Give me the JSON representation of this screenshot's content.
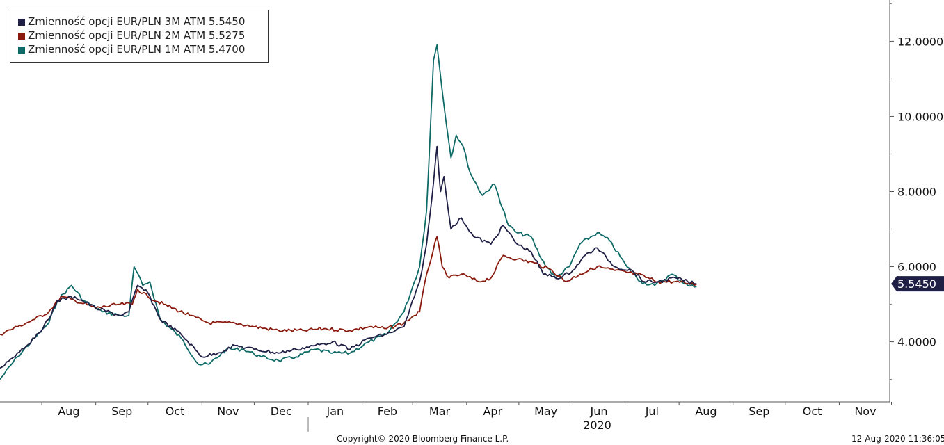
{
  "chart_data": {
    "type": "line",
    "x_range": [
      "2019-07-08",
      "2020-11-30"
    ],
    "ylim": [
      2.4,
      13.1
    ],
    "y_ticks": [
      "4.0000",
      "6.0000",
      "8.0000",
      "10.0000",
      "12.0000"
    ],
    "y_tick_values": [
      4,
      6,
      8,
      10,
      12
    ],
    "month_labels": [
      "Aug",
      "Sep",
      "Oct",
      "Nov",
      "Dec",
      "Jan",
      "Feb",
      "Mar",
      "Apr",
      "May",
      "Jun",
      "Jul",
      "Aug",
      "Sep",
      "Oct",
      "Nov"
    ],
    "year_label": "2020",
    "last_value_tag": "5.5450",
    "legend_position": "top-left",
    "series": [
      {
        "name": "Zmienność opcji EUR/PLN 3M ATM 5.5450",
        "color": "#1f1f45",
        "points": [
          [
            "2019-07-08",
            3.3
          ],
          [
            "2019-07-18",
            3.7
          ],
          [
            "2019-07-28",
            4.1
          ],
          [
            "2019-08-05",
            4.6
          ],
          [
            "2019-08-10",
            5.1
          ],
          [
            "2019-08-20",
            5.2
          ],
          [
            "2019-09-01",
            4.9
          ],
          [
            "2019-09-15",
            4.7
          ],
          [
            "2019-09-20",
            4.8
          ],
          [
            "2019-09-25",
            5.5
          ],
          [
            "2019-10-01",
            5.3
          ],
          [
            "2019-10-08",
            4.6
          ],
          [
            "2019-10-20",
            4.2
          ],
          [
            "2019-11-01",
            3.6
          ],
          [
            "2019-11-10",
            3.7
          ],
          [
            "2019-11-20",
            3.9
          ],
          [
            "2019-12-01",
            3.8
          ],
          [
            "2019-12-15",
            3.7
          ],
          [
            "2019-12-25",
            3.8
          ],
          [
            "2020-01-05",
            3.9
          ],
          [
            "2020-01-15",
            4.0
          ],
          [
            "2020-01-25",
            3.8
          ],
          [
            "2020-02-05",
            4.1
          ],
          [
            "2020-02-15",
            4.2
          ],
          [
            "2020-02-25",
            4.4
          ],
          [
            "2020-03-02",
            5.2
          ],
          [
            "2020-03-05",
            5.6
          ],
          [
            "2020-03-09",
            6.6
          ],
          [
            "2020-03-12",
            7.8
          ],
          [
            "2020-03-15",
            9.2
          ],
          [
            "2020-03-17",
            8.0
          ],
          [
            "2020-03-19",
            8.4
          ],
          [
            "2020-03-23",
            7.0
          ],
          [
            "2020-03-29",
            7.3
          ],
          [
            "2020-04-05",
            6.8
          ],
          [
            "2020-04-15",
            6.6
          ],
          [
            "2020-04-22",
            7.1
          ],
          [
            "2020-04-30",
            6.6
          ],
          [
            "2020-05-08",
            6.4
          ],
          [
            "2020-05-15",
            5.8
          ],
          [
            "2020-05-25",
            5.7
          ],
          [
            "2020-06-01",
            5.9
          ],
          [
            "2020-06-08",
            6.3
          ],
          [
            "2020-06-15",
            6.5
          ],
          [
            "2020-06-25",
            6.0
          ],
          [
            "2020-07-05",
            5.9
          ],
          [
            "2020-07-12",
            5.6
          ],
          [
            "2020-07-20",
            5.6
          ],
          [
            "2020-07-30",
            5.7
          ],
          [
            "2020-08-06",
            5.6
          ],
          [
            "2020-08-11",
            5.545
          ]
        ]
      },
      {
        "name": "Zmienność opcji EUR/PLN 2M ATM 5.5275",
        "color": "#8b1a0e",
        "points": [
          [
            "2019-07-08",
            4.2
          ],
          [
            "2019-07-18",
            4.4
          ],
          [
            "2019-07-28",
            4.6
          ],
          [
            "2019-08-05",
            4.8
          ],
          [
            "2019-08-12",
            5.2
          ],
          [
            "2019-08-20",
            5.1
          ],
          [
            "2019-09-01",
            4.9
          ],
          [
            "2019-09-15",
            5.0
          ],
          [
            "2019-09-22",
            5.0
          ],
          [
            "2019-09-25",
            5.4
          ],
          [
            "2019-10-01",
            5.2
          ],
          [
            "2019-10-10",
            5.0
          ],
          [
            "2019-10-25",
            4.7
          ],
          [
            "2019-11-05",
            4.5
          ],
          [
            "2019-11-20",
            4.5
          ],
          [
            "2019-12-01",
            4.4
          ],
          [
            "2019-12-15",
            4.3
          ],
          [
            "2019-12-30",
            4.3
          ],
          [
            "2020-01-10",
            4.35
          ],
          [
            "2020-01-25",
            4.3
          ],
          [
            "2020-02-05",
            4.4
          ],
          [
            "2020-02-15",
            4.35
          ],
          [
            "2020-02-25",
            4.5
          ],
          [
            "2020-03-02",
            4.7
          ],
          [
            "2020-03-05",
            4.8
          ],
          [
            "2020-03-09",
            5.8
          ],
          [
            "2020-03-15",
            6.8
          ],
          [
            "2020-03-18",
            6.0
          ],
          [
            "2020-03-22",
            5.7
          ],
          [
            "2020-03-29",
            5.8
          ],
          [
            "2020-04-08",
            5.6
          ],
          [
            "2020-04-15",
            5.7
          ],
          [
            "2020-04-22",
            6.3
          ],
          [
            "2020-04-30",
            6.2
          ],
          [
            "2020-05-10",
            6.1
          ],
          [
            "2020-05-20",
            5.9
          ],
          [
            "2020-05-28",
            5.6
          ],
          [
            "2020-06-05",
            5.8
          ],
          [
            "2020-06-15",
            6.0
          ],
          [
            "2020-06-25",
            5.9
          ],
          [
            "2020-07-08",
            5.8
          ],
          [
            "2020-07-20",
            5.6
          ],
          [
            "2020-07-30",
            5.6
          ],
          [
            "2020-08-06",
            5.55
          ],
          [
            "2020-08-11",
            5.5275
          ]
        ]
      },
      {
        "name": "Zmienność opcji EUR/PLN 1M ATM 5.4700",
        "color": "#0e6a66",
        "points": [
          [
            "2019-07-08",
            3.0
          ],
          [
            "2019-07-18",
            3.6
          ],
          [
            "2019-07-28",
            4.1
          ],
          [
            "2019-08-05",
            4.5
          ],
          [
            "2019-08-10",
            5.1
          ],
          [
            "2019-08-18",
            5.5
          ],
          [
            "2019-08-25",
            5.1
          ],
          [
            "2019-09-05",
            4.8
          ],
          [
            "2019-09-15",
            4.7
          ],
          [
            "2019-09-20",
            4.7
          ],
          [
            "2019-09-23",
            6.0
          ],
          [
            "2019-09-28",
            5.5
          ],
          [
            "2019-10-02",
            5.6
          ],
          [
            "2019-10-08",
            4.6
          ],
          [
            "2019-10-20",
            4.1
          ],
          [
            "2019-10-30",
            3.4
          ],
          [
            "2019-11-05",
            3.4
          ],
          [
            "2019-11-15",
            3.8
          ],
          [
            "2019-11-25",
            3.8
          ],
          [
            "2019-12-05",
            3.6
          ],
          [
            "2019-12-15",
            3.5
          ],
          [
            "2019-12-25",
            3.6
          ],
          [
            "2020-01-05",
            3.8
          ],
          [
            "2020-01-15",
            3.7
          ],
          [
            "2020-01-25",
            3.7
          ],
          [
            "2020-02-05",
            4.0
          ],
          [
            "2020-02-15",
            4.2
          ],
          [
            "2020-02-25",
            4.8
          ],
          [
            "2020-03-02",
            5.6
          ],
          [
            "2020-03-05",
            6.0
          ],
          [
            "2020-03-09",
            7.5
          ],
          [
            "2020-03-13",
            11.5
          ],
          [
            "2020-03-15",
            11.9
          ],
          [
            "2020-03-19",
            10.3
          ],
          [
            "2020-03-23",
            8.9
          ],
          [
            "2020-03-26",
            9.5
          ],
          [
            "2020-03-30",
            9.2
          ],
          [
            "2020-04-03",
            8.5
          ],
          [
            "2020-04-10",
            7.9
          ],
          [
            "2020-04-17",
            8.2
          ],
          [
            "2020-04-25",
            7.1
          ],
          [
            "2020-04-30",
            6.9
          ],
          [
            "2020-05-08",
            6.8
          ],
          [
            "2020-05-14",
            6.2
          ],
          [
            "2020-05-22",
            5.7
          ],
          [
            "2020-05-30",
            6.0
          ],
          [
            "2020-06-05",
            6.6
          ],
          [
            "2020-06-15",
            6.9
          ],
          [
            "2020-06-22",
            6.7
          ],
          [
            "2020-07-02",
            6.0
          ],
          [
            "2020-07-10",
            5.6
          ],
          [
            "2020-07-18",
            5.5
          ],
          [
            "2020-07-28",
            5.8
          ],
          [
            "2020-08-06",
            5.5
          ],
          [
            "2020-08-11",
            5.47
          ]
        ]
      }
    ]
  },
  "footer": {
    "copyright": "Copyright© 2020 Bloomberg Finance L.P.",
    "timestamp": "12-Aug-2020 11:36:05"
  }
}
